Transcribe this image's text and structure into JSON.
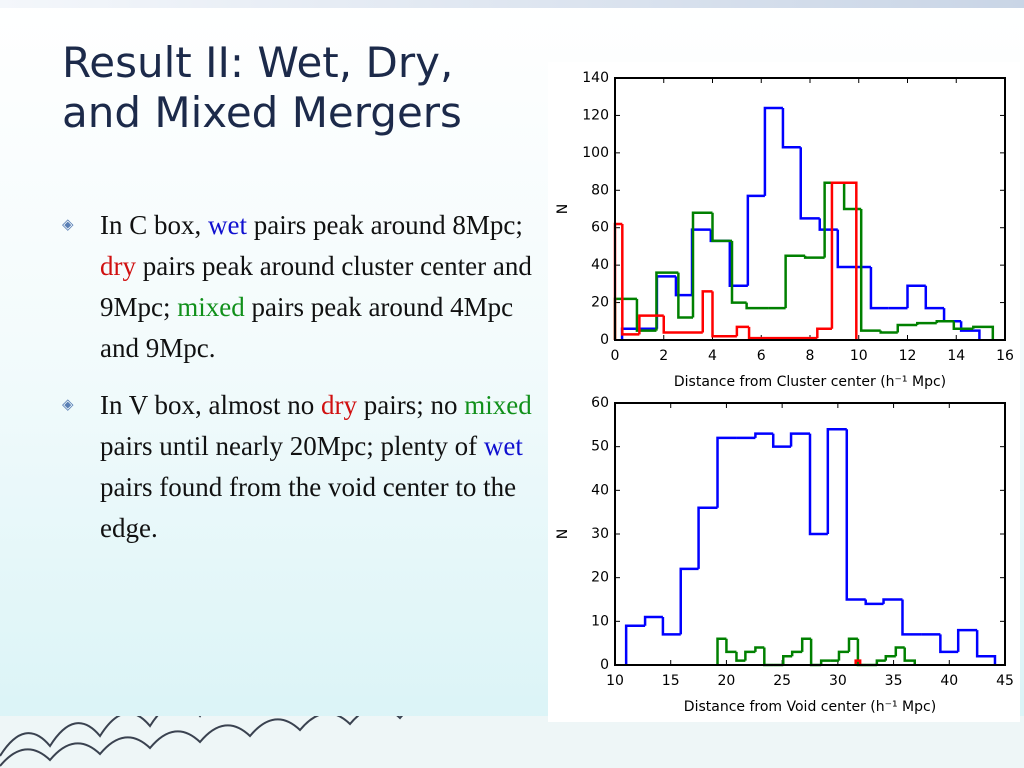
{
  "slide": {
    "title_lines": [
      "Result II: Wet, Dry,",
      "and Mixed Mergers"
    ],
    "bullets": [
      [
        {
          "text": "In C box, "
        },
        {
          "text": "wet",
          "color": "#1010d0"
        },
        {
          "text": " pairs peak around 8Mpc; "
        },
        {
          "text": "dry",
          "color": "#d01010"
        },
        {
          "text": " pairs peak around cluster center and 9Mpc; "
        },
        {
          "text": "mixed",
          "color": "#10901a"
        },
        {
          "text": " pairs peak around 4Mpc and 9Mpc."
        }
      ],
      [
        {
          "text": "In V box, almost no "
        },
        {
          "text": "dry",
          "color": "#d01010"
        },
        {
          "text": " pairs; no "
        },
        {
          "text": "mixed",
          "color": "#10901a"
        },
        {
          "text": " pairs until nearly 20Mpc; plenty of "
        },
        {
          "text": "wet",
          "color": "#1010d0"
        },
        {
          "text": " pairs found from the void center to the edge."
        }
      ]
    ]
  },
  "chart_data": [
    {
      "type": "histogram",
      "x_label": "Distance from Cluster center (h⁻¹ Mpc)",
      "y_label": "N",
      "xlim": [
        0,
        16
      ],
      "ylim": [
        0,
        140
      ],
      "xticks": [
        0,
        2,
        4,
        6,
        8,
        10,
        12,
        14,
        16
      ],
      "yticks": [
        0,
        20,
        40,
        60,
        80,
        100,
        120,
        140
      ],
      "series": [
        {
          "color": "#0000ff",
          "bins": [
            0.29,
            1.02,
            1.72,
            2.5,
            3.16,
            3.93,
            4.71,
            5.45,
            6.15,
            6.89,
            7.62,
            8.4,
            9.14,
            9.88,
            10.5,
            11.23,
            12.0,
            12.75,
            13.5,
            14.2,
            14.95
          ],
          "values": [
            6,
            6,
            34,
            24,
            59,
            53,
            29,
            77,
            124,
            103,
            65,
            59,
            39,
            39,
            17,
            17,
            29,
            17,
            10,
            5
          ]
        },
        {
          "color": "#008000",
          "bins": [
            0,
            0.9,
            1.7,
            2.6,
            3.2,
            4.0,
            4.8,
            5.4,
            6.3,
            7.0,
            7.8,
            8.6,
            9.4,
            10.1,
            10.9,
            11.6,
            12.4,
            13.2,
            13.9,
            14.7,
            15.5
          ],
          "values": [
            22,
            5,
            36,
            12,
            68,
            53,
            20,
            17,
            17,
            45,
            44,
            84,
            70,
            5,
            4,
            8,
            9,
            10,
            6,
            7
          ]
        },
        {
          "color": "#ff0000",
          "bins": [
            0,
            0.3,
            1.0,
            2.0,
            3.6,
            4.0,
            5.0,
            5.5,
            8.3,
            8.9,
            9.9
          ],
          "values": [
            62,
            3,
            13,
            4,
            26,
            2,
            7,
            1,
            6,
            84
          ]
        }
      ]
    },
    {
      "type": "histogram",
      "x_label": "Distance from Void center (h⁻¹ Mpc)",
      "y_label": "N",
      "xlim": [
        10,
        45
      ],
      "ylim": [
        0,
        60
      ],
      "xticks": [
        10,
        15,
        20,
        25,
        30,
        35,
        40,
        45
      ],
      "yticks": [
        0,
        10,
        20,
        30,
        40,
        50,
        60
      ],
      "series": [
        {
          "color": "#0000ff",
          "bins": [
            11,
            12.7,
            14.3,
            15.9,
            17.5,
            19.2,
            20.9,
            22.6,
            24.2,
            25.8,
            27.5,
            29.1,
            30.8,
            32.5,
            34.1,
            35.8,
            37.5,
            39.2,
            40.8,
            42.5,
            44.1
          ],
          "values": [
            9,
            11,
            7,
            22,
            36,
            52,
            52,
            53,
            50,
            53,
            30,
            54,
            15,
            14,
            15,
            7,
            7,
            3,
            8,
            2
          ]
        },
        {
          "color": "#008000",
          "bins": [
            19.2,
            20,
            20.9,
            21.7,
            22.6,
            23.4,
            24.2,
            25.1,
            25.9,
            26.8,
            27.6,
            28.5,
            29.3,
            30.1,
            31,
            31.8,
            32.6,
            33.5,
            34.3,
            35.2,
            36,
            36.9
          ],
          "values": [
            6,
            3,
            1,
            3,
            4,
            0,
            0,
            2,
            3,
            6,
            0,
            1,
            1,
            3,
            6,
            0,
            0,
            1,
            2,
            4,
            1
          ]
        },
        {
          "color": "#ff0000",
          "bins": [
            31.6,
            32
          ],
          "values": [
            1
          ]
        }
      ]
    }
  ]
}
